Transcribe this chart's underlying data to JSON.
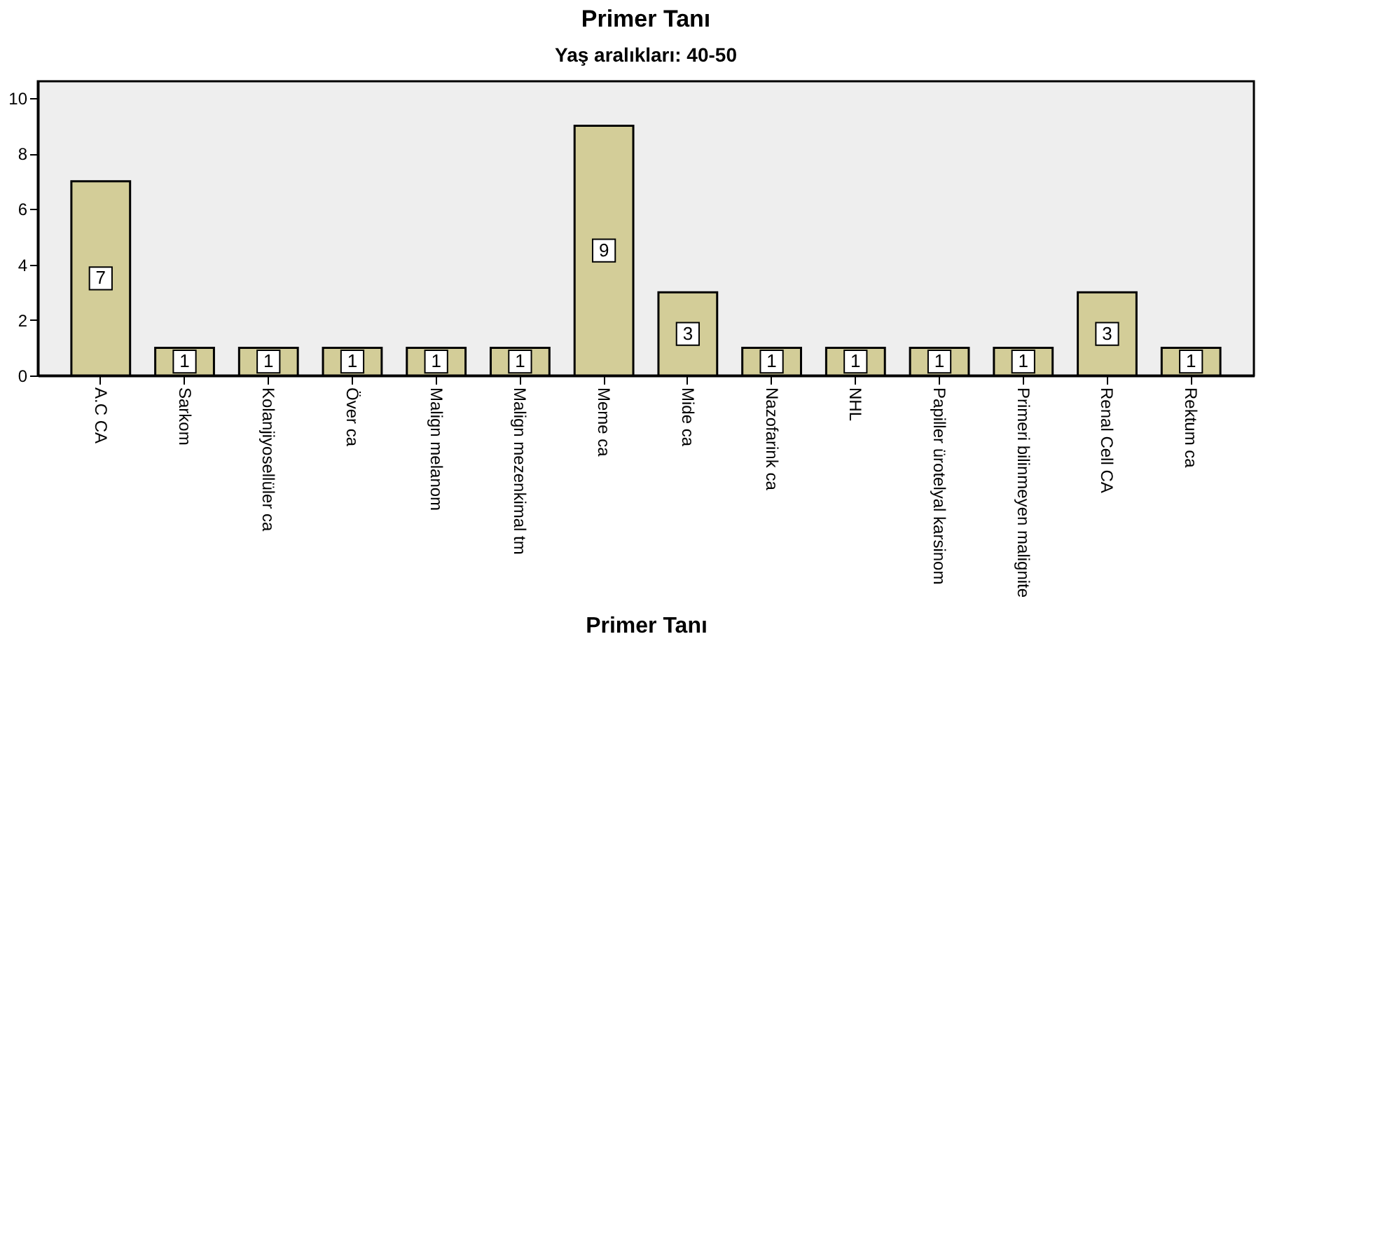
{
  "chart_data": {
    "type": "bar",
    "title": "Primer Tanı",
    "subtitle": "Yaş aralıkları: 40-50",
    "xlabel": "Primer Tanı",
    "categories": [
      "A.C CA",
      "Sarkom",
      "Kolanjiyosellüler ca",
      "Över ca",
      "Malign melanom",
      "Malign mezenkimal tm",
      "Meme ca",
      "Mide ca",
      "Nazofarink ca",
      "NHL",
      "Papiller ürotelyal karsinom",
      "Primeri bilinmeyen malignite",
      "Renal Cell CA",
      "Rektum ca"
    ],
    "values": [
      7,
      1,
      1,
      1,
      1,
      1,
      9,
      3,
      1,
      1,
      1,
      1,
      3,
      1
    ],
    "color": "#d3cd98",
    "ylim": [
      0,
      10.6
    ],
    "yticks": [
      0,
      2,
      4,
      6,
      8,
      10
    ],
    "grid": false,
    "data_labels": true
  }
}
